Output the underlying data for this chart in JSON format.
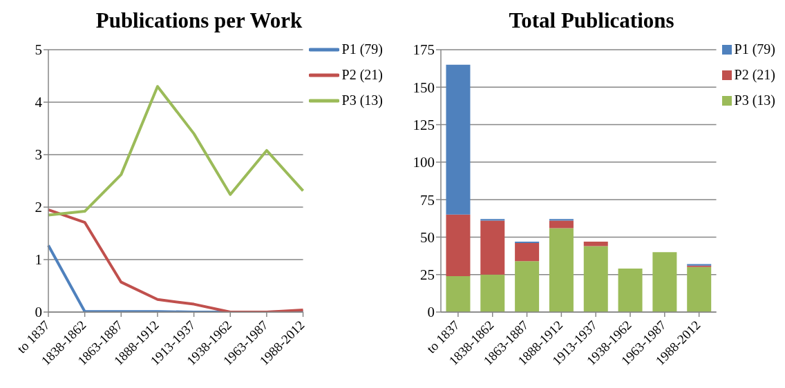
{
  "chart_data": [
    {
      "type": "line",
      "title": "Publications per Work",
      "categories": [
        "to 1837",
        "1838-1862",
        "1863-1887",
        "1888-1912",
        "1913-1937",
        "1938-1962",
        "1963-1987",
        "1988-2012"
      ],
      "series": [
        {
          "name": "P1 (79)",
          "color": "#4f81bd",
          "values": [
            1.27,
            0.01,
            0.01,
            0.01,
            0,
            0,
            0,
            0.01
          ]
        },
        {
          "name": "P2 (21)",
          "color": "#c0504d",
          "values": [
            1.95,
            1.71,
            0.57,
            0.24,
            0.15,
            0,
            0,
            0.04
          ]
        },
        {
          "name": "P3 (13)",
          "color": "#9bbb59",
          "values": [
            1.85,
            1.92,
            2.62,
            4.3,
            3.4,
            2.24,
            3.08,
            2.31
          ]
        }
      ],
      "ylim": [
        0,
        5
      ],
      "yticks": [
        0,
        1,
        2,
        3,
        4,
        5
      ],
      "grid": "y",
      "legend": "top right",
      "marker": "none",
      "line_style": "solid"
    },
    {
      "type": "bar",
      "title": "Total Publications",
      "stacked": true,
      "categories": [
        "to 1837",
        "1838-1862",
        "1863-1887",
        "1888-1912",
        "1913-1937",
        "1938-1962",
        "1963-1987",
        "1988-2012"
      ],
      "series": [
        {
          "name": "P3 (13)",
          "color": "#9bbb59",
          "values": [
            24,
            25,
            34,
            56,
            44,
            29,
            40,
            30
          ]
        },
        {
          "name": "P2 (21)",
          "color": "#c0504d",
          "values": [
            41,
            36,
            12,
            5,
            3,
            0,
            0,
            1
          ]
        },
        {
          "name": "P1 (79)",
          "color": "#4f81bd",
          "values": [
            100,
            1,
            1,
            1,
            0,
            0,
            0,
            1
          ]
        }
      ],
      "ylim": [
        0,
        175
      ],
      "yticks": [
        0,
        25,
        50,
        75,
        100,
        125,
        150,
        175
      ],
      "grid": "y",
      "legend": "top right"
    }
  ]
}
